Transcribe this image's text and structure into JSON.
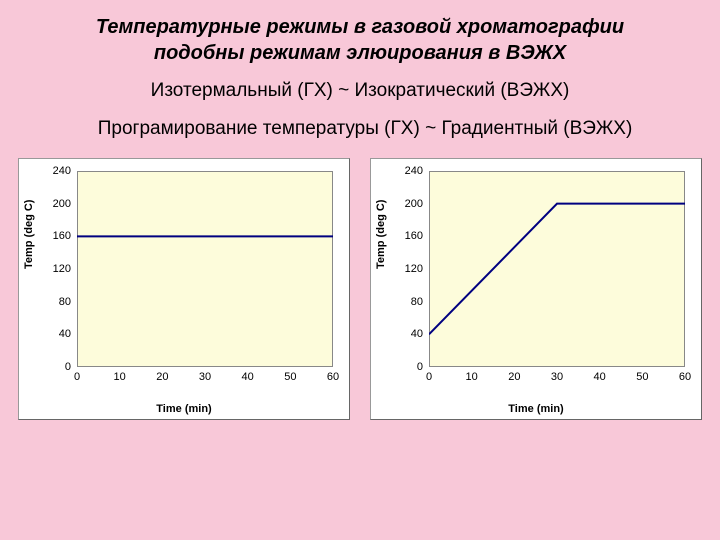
{
  "title_line1": "Температурные режимы в газовой хроматографии",
  "title_line2": "подобны режимам элюирования в ВЭЖХ",
  "subtitle1": "Изотермальный  (ГХ)  ~ Изократический (ВЭЖХ)",
  "subtitle2": "Програмирование температуры (ГХ) ~  Градиентный (ВЭЖХ)",
  "chart_left": {
    "type": "line",
    "xlabel": "Time (min)",
    "ylabel": "Temp (deg C)",
    "xlim": [
      0,
      60
    ],
    "ylim": [
      0,
      240
    ],
    "xtick_step": 10,
    "ytick_step": 40,
    "xticks": [
      0,
      10,
      20,
      30,
      40,
      50,
      60
    ],
    "yticks": [
      0,
      40,
      80,
      120,
      160,
      200,
      240
    ],
    "background_color": "#fdfcdb",
    "line_color": "#000080",
    "line_width": 2,
    "points": [
      {
        "x": 0,
        "y": 160
      },
      {
        "x": 60,
        "y": 160
      }
    ],
    "label_fontsize": 11,
    "tick_fontsize": 11
  },
  "chart_right": {
    "type": "line",
    "xlabel": "Time (min)",
    "ylabel": "Temp (deg C)",
    "xlim": [
      0,
      60
    ],
    "ylim": [
      0,
      240
    ],
    "xtick_step": 10,
    "ytick_step": 40,
    "xticks": [
      0,
      10,
      20,
      30,
      40,
      50,
      60
    ],
    "yticks": [
      0,
      40,
      80,
      120,
      160,
      200,
      240
    ],
    "background_color": "#fdfcdb",
    "line_color": "#000080",
    "line_width": 2,
    "points": [
      {
        "x": 0,
        "y": 40
      },
      {
        "x": 30,
        "y": 200
      },
      {
        "x": 60,
        "y": 200
      }
    ],
    "label_fontsize": 11,
    "tick_fontsize": 11
  },
  "page_bg": "#f8c8d8",
  "chart_bg": "#ffffff"
}
